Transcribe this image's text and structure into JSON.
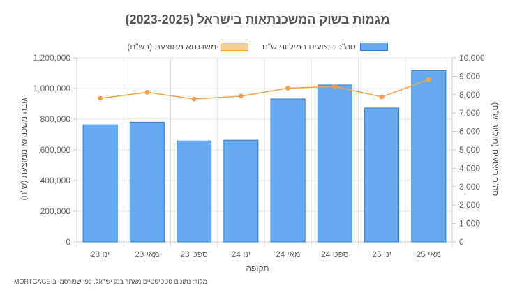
{
  "chart_data": {
    "type": "bar",
    "title": "מגמות בשוק המשכנתאות בישראל (2023-2025)",
    "xlabel": "תקופה",
    "ylabel": "גובה משכנתא ממוצעת (ש\"ח)",
    "y2label": "סה\"כ ביצועים (מיליוני ש\"ח)",
    "categories": [
      "ינו 23",
      "מאי 23",
      "ספט 23",
      "ינו 24",
      "מאי 24",
      "ספט 24",
      "ינו 25",
      "מאי 25"
    ],
    "ylim": [
      0,
      1200000
    ],
    "y2lim": [
      0,
      10000
    ],
    "y_ticks": [
      "0",
      "200,000",
      "400,000",
      "600,000",
      "800,000",
      "1,000,000",
      "1,200,000"
    ],
    "y2_ticks": [
      "0",
      "1,000",
      "2,000",
      "3,000",
      "4,000",
      "5,000",
      "6,000",
      "7,000",
      "8,000",
      "9,000",
      "10,000"
    ],
    "series": [
      {
        "name": "סה\"כ ביצועים במיליוני ש\"ח",
        "type": "bar",
        "axis": "left",
        "color": "#66aaf0",
        "border": "#2f7fd0",
        "values": [
          763000,
          780000,
          658000,
          663000,
          932000,
          1023000,
          873000,
          1117000
        ]
      },
      {
        "name": "משכנתא ממוצעת (בש\"ח)",
        "type": "line",
        "axis": "right",
        "color": "#f5a04a",
        "fill": "#fbcc95",
        "values": [
          7800,
          8130,
          7760,
          7920,
          8350,
          8440,
          7880,
          8820
        ]
      }
    ],
    "grid": true,
    "legend_position": "top"
  },
  "source_note": "מקור: נתונים סטטיסטיים מאתר בנק ישראל, כפי שפורסמו ב-MORTGAGE"
}
